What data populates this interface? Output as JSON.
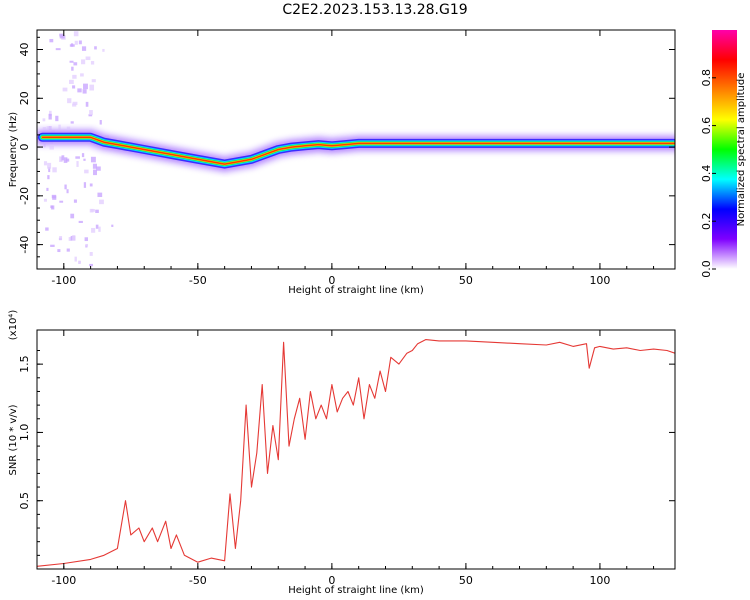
{
  "page_title": "C2E2.2023.153.13.28.G19",
  "chart_data": [
    {
      "type": "heatmap",
      "title": "C2E2.2023.153.13.28.G19",
      "xlabel": "Height of straight line (km)",
      "ylabel": "Frequency (Hz)",
      "xlim": [
        -110,
        128
      ],
      "ylim": [
        -50,
        48
      ],
      "x_ticks": [
        -100,
        -50,
        0,
        50,
        100
      ],
      "y_ticks": [
        -40,
        -20,
        0,
        20,
        40
      ],
      "colorbar": {
        "label": "Normalized spectral amplitude",
        "range": [
          0,
          1
        ],
        "ticks": [
          "0.0",
          "0.2",
          "0.4",
          "0.6",
          "0.8"
        ],
        "colors": [
          "#ffffff",
          "#7f00ff",
          "#0000ff",
          "#00ffff",
          "#00ff00",
          "#ffff00",
          "#ff7f00",
          "#ff0000",
          "#ff00aa"
        ]
      },
      "ridge": {
        "x": [
          -108,
          -100,
          -90,
          -85,
          -80,
          -70,
          -60,
          -50,
          -40,
          -35,
          -30,
          -25,
          -20,
          -15,
          -10,
          -5,
          0,
          5,
          10,
          20,
          30,
          50,
          80,
          95,
          100,
          128
        ],
        "y": [
          4,
          4,
          4,
          2,
          1,
          -1,
          -3,
          -5,
          -7,
          -6,
          -5,
          -3,
          -1,
          0,
          0.5,
          1,
          0.5,
          1,
          1.5,
          1.5,
          1.5,
          1.5,
          1.5,
          1.5,
          1.5,
          1.5
        ]
      }
    },
    {
      "type": "line",
      "xlabel": "Height of straight line (km)",
      "ylabel": "SNR (10 * v/v)",
      "scale_label": "(x10⁴)",
      "xlim": [
        -110,
        128
      ],
      "ylim": [
        0,
        1.75
      ],
      "x_ticks": [
        -100,
        -50,
        0,
        50,
        100
      ],
      "y_ticks": [
        "0.5",
        "1.0",
        "1.5"
      ],
      "color": "#e53935",
      "series": [
        {
          "x": [
            -110,
            -100,
            -90,
            -85,
            -80,
            -77,
            -75,
            -72,
            -70,
            -67,
            -65,
            -62,
            -60,
            -58,
            -55,
            -50,
            -45,
            -40,
            -38,
            -36,
            -34,
            -32,
            -30,
            -28,
            -26,
            -24,
            -22,
            -20,
            -18,
            -16,
            -14,
            -12,
            -10,
            -8,
            -6,
            -4,
            -2,
            0,
            2,
            4,
            6,
            8,
            10,
            12,
            14,
            16,
            18,
            20,
            22,
            25,
            28,
            30,
            32,
            35,
            40,
            50,
            60,
            70,
            80,
            85,
            90,
            95,
            96,
            98,
            100,
            105,
            110,
            115,
            120,
            125,
            128
          ],
          "y": [
            0.02,
            0.04,
            0.07,
            0.1,
            0.15,
            0.5,
            0.25,
            0.3,
            0.2,
            0.3,
            0.2,
            0.35,
            0.15,
            0.25,
            0.1,
            0.05,
            0.08,
            0.06,
            0.55,
            0.15,
            0.5,
            1.2,
            0.6,
            0.85,
            1.35,
            0.7,
            1.05,
            0.8,
            1.66,
            0.9,
            1.1,
            1.25,
            0.95,
            1.3,
            1.1,
            1.2,
            1.1,
            1.35,
            1.15,
            1.25,
            1.3,
            1.2,
            1.4,
            1.1,
            1.35,
            1.25,
            1.45,
            1.3,
            1.55,
            1.5,
            1.58,
            1.6,
            1.65,
            1.68,
            1.67,
            1.67,
            1.66,
            1.65,
            1.64,
            1.66,
            1.63,
            1.65,
            1.47,
            1.62,
            1.63,
            1.61,
            1.62,
            1.6,
            1.61,
            1.6,
            1.58
          ]
        }
      ]
    }
  ]
}
